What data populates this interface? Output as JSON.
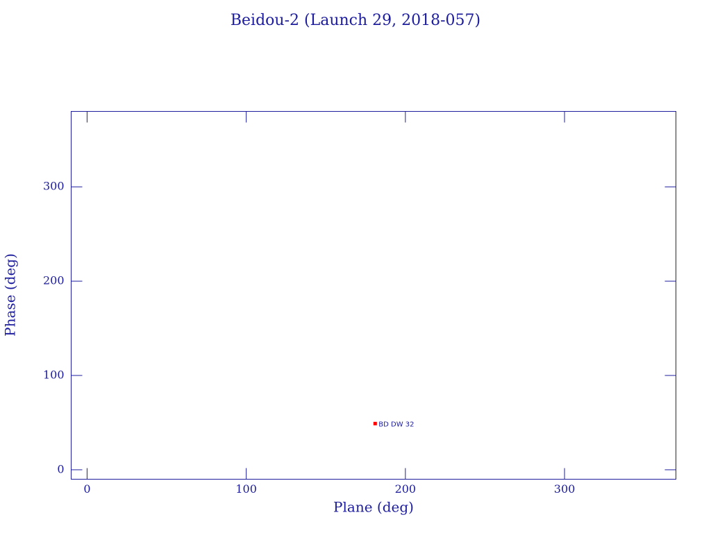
{
  "chart_data": {
    "type": "scatter",
    "title": "Beidou-2 (Launch 29, 2018-057)",
    "xlabel": "Plane (deg)",
    "ylabel": "Phase (deg)",
    "x": [
      181
    ],
    "values": [
      49
    ],
    "labels": [
      "BD DW 32"
    ],
    "color": "#ff0000",
    "xlim": [
      -10,
      370
    ],
    "ylim": [
      -10,
      380
    ],
    "xticks": [
      0,
      100,
      200,
      300
    ],
    "yticks": [
      0,
      100,
      200,
      300
    ]
  }
}
